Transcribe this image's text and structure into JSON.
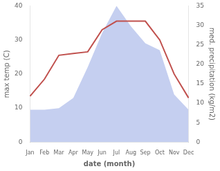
{
  "chart_data": {
    "type": "line",
    "categories": [
      "Jan",
      "Feb",
      "Mar",
      "Apr",
      "May",
      "Jun",
      "Jul",
      "Aug",
      "Sep",
      "Oct",
      "Nov",
      "Dec"
    ],
    "series": [
      {
        "type": "area",
        "color": "#c5cff0",
        "values": [
          9.5,
          9.5,
          10.0,
          13.0,
          22.0,
          32.0,
          40.0,
          34.0,
          29.0,
          27.0,
          14.0,
          9.5
        ]
      },
      {
        "type": "line",
        "color": "#c0504d",
        "values": [
          13.5,
          18.5,
          25.5,
          26.0,
          26.5,
          33.0,
          35.5,
          35.5,
          35.5,
          30.0,
          20.0,
          13.0
        ]
      }
    ],
    "xlabel": "date (month)",
    "ylabel": "max temp (C)",
    "y2label": "med. precipitation (kg/m2)",
    "ylim": [
      0,
      40
    ],
    "yticks": [
      0,
      10,
      20,
      30,
      40
    ],
    "y2lim": [
      0,
      35
    ],
    "y2ticks": [
      0,
      5,
      10,
      15,
      20,
      25,
      30,
      35
    ],
    "grid": false
  }
}
